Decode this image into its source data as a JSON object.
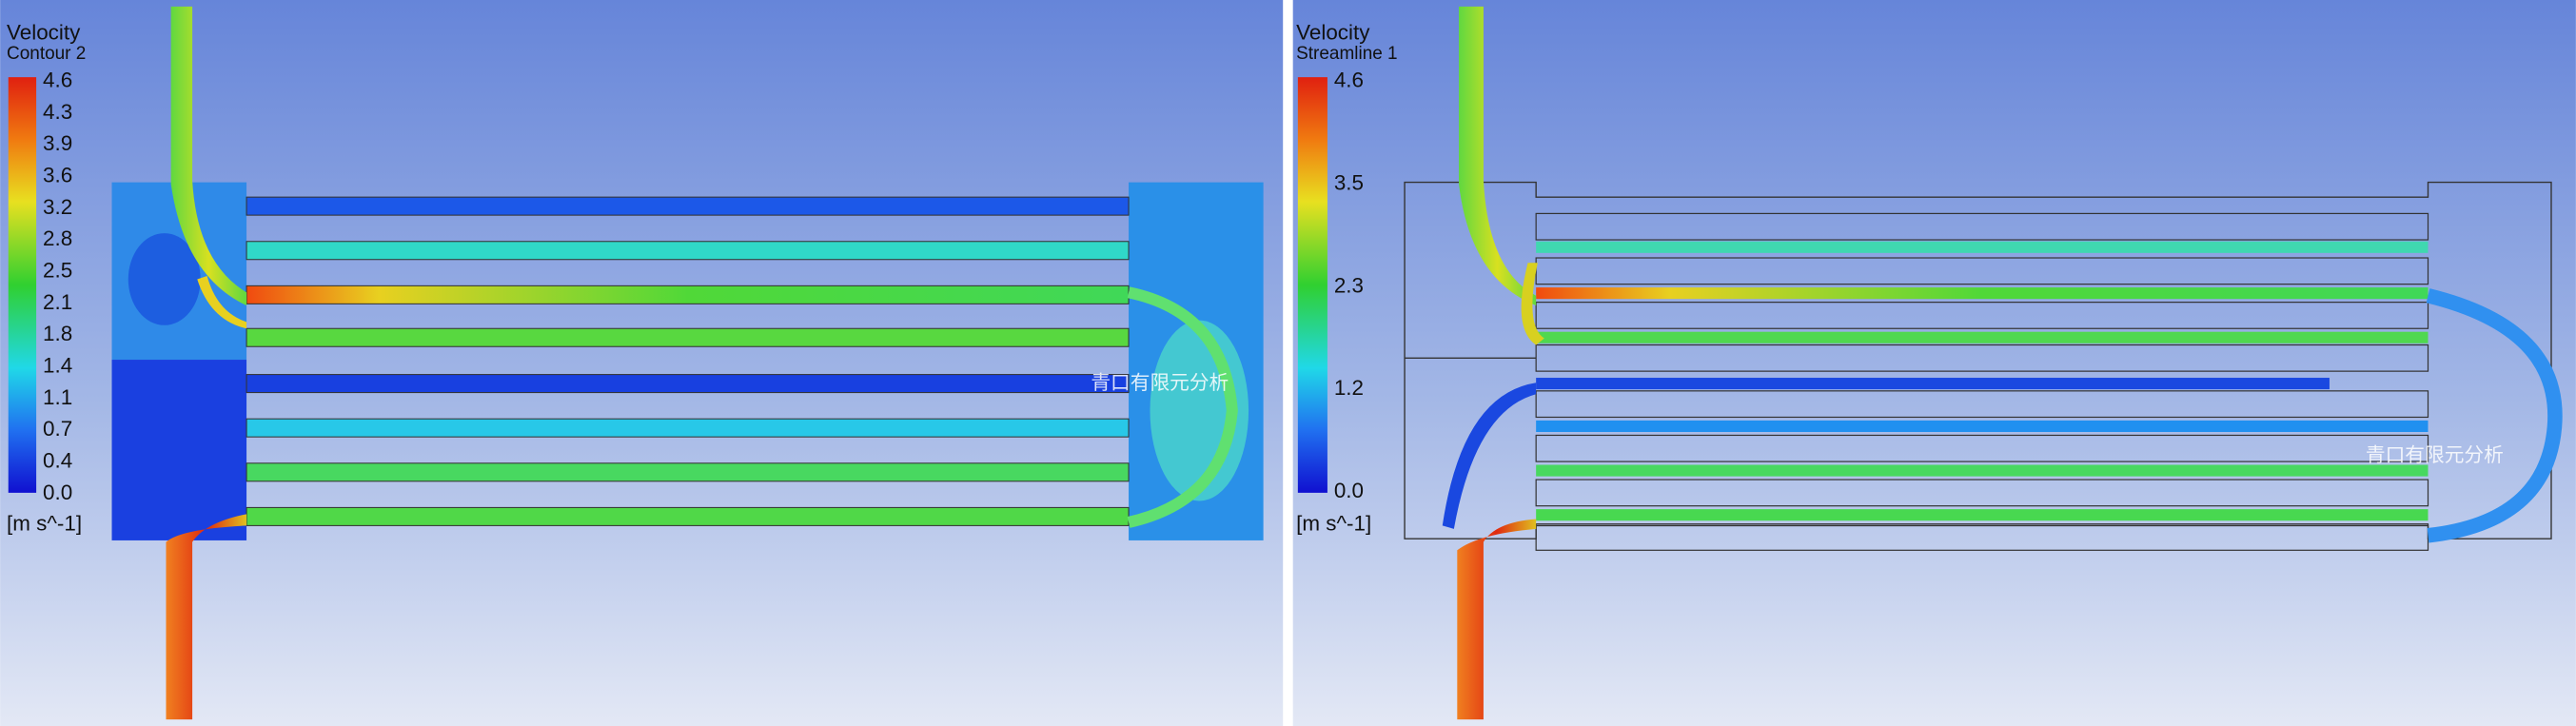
{
  "panels": [
    {
      "legend": {
        "title": "Velocity",
        "subtitle": "Contour 2",
        "ticks": [
          "4.6",
          "4.3",
          "3.9",
          "3.6",
          "3.2",
          "2.8",
          "2.5",
          "2.1",
          "1.8",
          "1.4",
          "1.1",
          "0.7",
          "0.4",
          "0.0"
        ],
        "unit": "[m s^-1]"
      },
      "watermark": "青口有限元分析"
    },
    {
      "legend": {
        "title": "Velocity",
        "subtitle": "Streamline 1",
        "ticks": [
          "4.6",
          "3.5",
          "2.3",
          "1.2",
          "0.0"
        ],
        "unit": "[m s^-1]"
      },
      "watermark": "青口有限元分析"
    }
  ]
}
